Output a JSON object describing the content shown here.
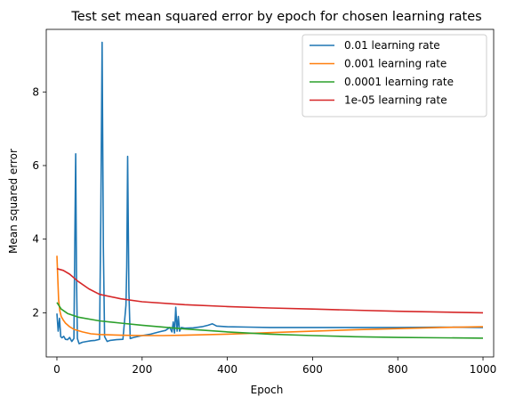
{
  "chart_data": {
    "type": "line",
    "title": "Test set mean squared error by epoch for chosen learning rates",
    "xlabel": "Epoch",
    "ylabel": "Mean squared error",
    "xlim": [
      -25,
      1025
    ],
    "ylim": [
      0.8,
      9.7
    ],
    "xticks": [
      0,
      200,
      400,
      600,
      800,
      1000
    ],
    "yticks": [
      2,
      4,
      6,
      8
    ],
    "grid": false,
    "legend_position": "top-right",
    "series": [
      {
        "name": "0.01 learning rate",
        "color": "#1f77b4",
        "points": [
          [
            0,
            1.98
          ],
          [
            3,
            1.5
          ],
          [
            6,
            1.85
          ],
          [
            9,
            1.35
          ],
          [
            12,
            1.32
          ],
          [
            16,
            1.36
          ],
          [
            20,
            1.28
          ],
          [
            25,
            1.27
          ],
          [
            30,
            1.33
          ],
          [
            35,
            1.22
          ],
          [
            40,
            1.3
          ],
          [
            42,
            3.9
          ],
          [
            44,
            6.32
          ],
          [
            46,
            3.0
          ],
          [
            48,
            1.3
          ],
          [
            52,
            1.16
          ],
          [
            60,
            1.2
          ],
          [
            70,
            1.22
          ],
          [
            80,
            1.24
          ],
          [
            90,
            1.25
          ],
          [
            100,
            1.28
          ],
          [
            103,
            4.5
          ],
          [
            106,
            9.35
          ],
          [
            109,
            3.8
          ],
          [
            112,
            1.35
          ],
          [
            118,
            1.22
          ],
          [
            125,
            1.25
          ],
          [
            140,
            1.27
          ],
          [
            155,
            1.28
          ],
          [
            162,
            2.2
          ],
          [
            164,
            3.25
          ],
          [
            166,
            6.25
          ],
          [
            169,
            2.6
          ],
          [
            172,
            1.3
          ],
          [
            180,
            1.33
          ],
          [
            200,
            1.38
          ],
          [
            220,
            1.42
          ],
          [
            240,
            1.48
          ],
          [
            255,
            1.52
          ],
          [
            265,
            1.6
          ],
          [
            270,
            1.48
          ],
          [
            273,
            1.75
          ],
          [
            276,
            1.45
          ],
          [
            279,
            2.15
          ],
          [
            282,
            1.5
          ],
          [
            285,
            1.9
          ],
          [
            288,
            1.5
          ],
          [
            292,
            1.6
          ],
          [
            300,
            1.58
          ],
          [
            320,
            1.59
          ],
          [
            340,
            1.62
          ],
          [
            355,
            1.66
          ],
          [
            365,
            1.7
          ],
          [
            375,
            1.64
          ],
          [
            400,
            1.62
          ],
          [
            450,
            1.61
          ],
          [
            500,
            1.6
          ],
          [
            600,
            1.6
          ],
          [
            700,
            1.6
          ],
          [
            800,
            1.6
          ],
          [
            900,
            1.61
          ],
          [
            1000,
            1.6
          ]
        ]
      },
      {
        "name": "0.001 learning rate",
        "color": "#ff7f0e",
        "points": [
          [
            0,
            3.55
          ],
          [
            4,
            2.35
          ],
          [
            7,
            2.05
          ],
          [
            10,
            1.9
          ],
          [
            15,
            1.8
          ],
          [
            20,
            1.72
          ],
          [
            30,
            1.62
          ],
          [
            40,
            1.55
          ],
          [
            60,
            1.48
          ],
          [
            80,
            1.43
          ],
          [
            100,
            1.41
          ],
          [
            150,
            1.39
          ],
          [
            200,
            1.38
          ],
          [
            250,
            1.38
          ],
          [
            300,
            1.39
          ],
          [
            400,
            1.42
          ],
          [
            500,
            1.46
          ],
          [
            600,
            1.5
          ],
          [
            700,
            1.54
          ],
          [
            800,
            1.57
          ],
          [
            900,
            1.6
          ],
          [
            1000,
            1.62
          ]
        ]
      },
      {
        "name": "0.0001 learning rate",
        "color": "#2ca02c",
        "points": [
          [
            0,
            2.28
          ],
          [
            10,
            2.1
          ],
          [
            25,
            1.98
          ],
          [
            50,
            1.88
          ],
          [
            100,
            1.78
          ],
          [
            150,
            1.72
          ],
          [
            200,
            1.66
          ],
          [
            300,
            1.56
          ],
          [
            400,
            1.48
          ],
          [
            500,
            1.42
          ],
          [
            600,
            1.38
          ],
          [
            700,
            1.35
          ],
          [
            800,
            1.33
          ],
          [
            900,
            1.32
          ],
          [
            1000,
            1.31
          ]
        ]
      },
      {
        "name": "1e-05 learning rate",
        "color": "#d62728",
        "points": [
          [
            0,
            3.2
          ],
          [
            15,
            3.15
          ],
          [
            30,
            3.05
          ],
          [
            50,
            2.85
          ],
          [
            75,
            2.65
          ],
          [
            100,
            2.5
          ],
          [
            150,
            2.38
          ],
          [
            200,
            2.3
          ],
          [
            300,
            2.22
          ],
          [
            400,
            2.17
          ],
          [
            500,
            2.13
          ],
          [
            600,
            2.1
          ],
          [
            700,
            2.07
          ],
          [
            800,
            2.04
          ],
          [
            900,
            2.02
          ],
          [
            1000,
            2.0
          ]
        ]
      }
    ]
  }
}
